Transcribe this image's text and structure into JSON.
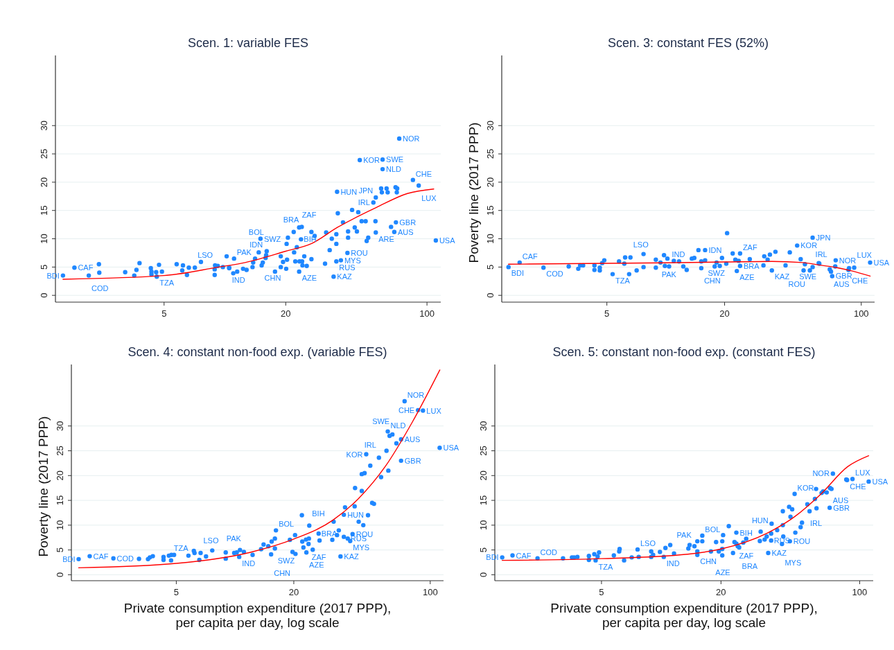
{
  "chart_data": [
    {
      "type": "scatter",
      "title": "Scen. 1: variable FES",
      "log": "x",
      "grid": "y",
      "tick_labels": true,
      "xlim": [
        1.45,
        117
      ],
      "xticks": [
        5,
        20,
        100
      ],
      "ylim": [
        -1.2,
        42.4
      ],
      "yticks": [
        0,
        5,
        10,
        15,
        20,
        25,
        30
      ],
      "series": [
        {
          "marker": "circle",
          "color": "#1f87ff",
          "x": [
            1.58,
            1.8,
            2.12,
            4.6,
            7.1,
            10.5,
            11.1,
            15.0,
            16.1,
            15.9,
            15.2,
            23.3,
            24.0,
            23.8,
            23.3,
            35.9,
            34.5,
            40.4,
            37.5,
            35.6,
            46.5,
            60.3,
            60.3,
            72.9,
            55.8,
            54.3,
            55.8,
            68.9,
            70.2,
            85.2,
            91.0,
            110.6,
            2.38,
            2.39,
            3.21,
            3.56,
            3.65,
            3.78,
            4.3,
            4.33,
            4.33,
            4.57,
            4.72,
            4.88,
            5.77,
            6.15,
            6.2,
            6.49,
            6.63,
            7.61,
            8.9,
            8.9,
            8.94,
            9.22,
            9.77,
            10.2,
            10.5,
            11.0,
            11.5,
            12.3,
            12.8,
            13.7,
            13.8,
            14.1,
            14.7,
            15.4,
            16.0,
            17.7,
            18.9,
            18.9,
            19.4,
            20.1,
            20.3,
            20.2,
            20.5,
            21.9,
            22.0,
            22.3,
            22.7,
            23.4,
            24.1,
            24.2,
            24.7,
            25.4,
            26.8,
            27.8,
            26.8,
            31.3,
            31.7,
            33.0,
            33.8,
            35.6,
            35.6,
            36.2,
            38.4,
            40.7,
            40.7,
            42.6,
            43.9,
            45.0,
            45.7,
            47.5,
            49.7,
            50.3,
            51.2,
            55.6,
            59.3,
            59.8,
            63.1,
            63.9,
            66.4,
            69.9,
            70.9,
            71.2
          ],
          "values": [
            3.5,
            4.9,
            3.5,
            3.3,
            4.9,
            4.9,
            6.5,
            10.0,
            7.8,
            6.6,
            5.3,
            12.0,
            12.1,
            9.9,
            4.2,
            18.3,
            3.3,
            7.5,
            6.2,
            6.0,
            23.9,
            24.0,
            22.3,
            27.7,
            17.3,
            16.4,
            11.1,
            11.2,
            12.9,
            20.4,
            19.4,
            9.7,
            5.5,
            4.0,
            4.1,
            3.5,
            4.5,
            5.7,
            4.8,
            4.2,
            3.7,
            4.1,
            5.4,
            4.2,
            5.5,
            4.4,
            5.3,
            3.6,
            4.9,
            5.9,
            4.6,
            3.6,
            5.3,
            5.2,
            5.0,
            6.9,
            4.8,
            3.9,
            4.2,
            4.7,
            4.5,
            5.0,
            5.8,
            6.5,
            7.6,
            5.8,
            7.1,
            4.2,
            5.0,
            6.9,
            5.9,
            4.7,
            6.3,
            9.1,
            10.2,
            11.2,
            7.6,
            6.0,
            8.5,
            6.0,
            6.0,
            5.3,
            6.9,
            5.2,
            6.4,
            10.5,
            11.2,
            5.6,
            11.1,
            8.0,
            10.0,
            9.1,
            10.8,
            14.5,
            12.9,
            11.3,
            10.2,
            15.1,
            12.0,
            11.3,
            14.7,
            13.1,
            13.1,
            9.6,
            10.2,
            13.1,
            18.9,
            18.2,
            18.9,
            18.2,
            12.1,
            19.1,
            18.2,
            18.9
          ]
        },
        {
          "type": "line",
          "color": "#ff0000",
          "x": [
            1.58,
            5,
            9.3,
            12.6,
            20,
            27,
            36,
            56,
            80,
            108
          ],
          "values": [
            2.85,
            3.5,
            5.0,
            5.8,
            7.8,
            9.2,
            12.0,
            15.5,
            18.0,
            18.8
          ]
        }
      ],
      "annotations": [
        {
          "text": "BDI",
          "x": 1.58,
          "y": 3.5
        },
        {
          "text": "CAF",
          "x": 1.8,
          "y": 4.9
        },
        {
          "text": "COD",
          "x": 2.12,
          "y": 3.5
        },
        {
          "text": "TZA",
          "x": 4.6,
          "y": 3.3
        },
        {
          "text": "LSO",
          "x": 7.1,
          "y": 4.9
        },
        {
          "text": "IND",
          "x": 10.5,
          "y": 4.9
        },
        {
          "text": "PAK",
          "x": 11.1,
          "y": 6.5
        },
        {
          "text": "SWZ",
          "x": 15.0,
          "y": 10.0
        },
        {
          "text": "BOL",
          "x": 16.1,
          "y": 7.8
        },
        {
          "text": "IDN",
          "x": 15.9,
          "y": 6.6
        },
        {
          "text": "CHN",
          "x": 15.2,
          "y": 5.3
        },
        {
          "text": "ZAF",
          "x": 23.3,
          "y": 12.0
        },
        {
          "text": "BRA",
          "x": 24.0,
          "y": 12.1
        },
        {
          "text": "BIH",
          "x": 23.8,
          "y": 9.9
        },
        {
          "text": "AZE",
          "x": 23.3,
          "y": 4.2
        },
        {
          "text": "HUN",
          "x": 35.9,
          "y": 18.3
        },
        {
          "text": "KAZ",
          "x": 34.5,
          "y": 3.3
        },
        {
          "text": "ROU",
          "x": 40.4,
          "y": 7.5
        },
        {
          "text": "MYS",
          "x": 37.5,
          "y": 6.2
        },
        {
          "text": "RUS",
          "x": 35.6,
          "y": 6.0
        },
        {
          "text": "KOR",
          "x": 46.5,
          "y": 23.9
        },
        {
          "text": "SWE",
          "x": 60.3,
          "y": 24.0
        },
        {
          "text": "NLD",
          "x": 60.3,
          "y": 22.3
        },
        {
          "text": "NOR",
          "x": 72.9,
          "y": 27.7
        },
        {
          "text": "JPN",
          "x": 55.8,
          "y": 17.3
        },
        {
          "text": "IRL",
          "x": 54.3,
          "y": 16.4
        },
        {
          "text": "ARE",
          "x": 55.8,
          "y": 11.1
        },
        {
          "text": "AUS",
          "x": 68.9,
          "y": 11.2
        },
        {
          "text": "GBR",
          "x": 70.2,
          "y": 12.9
        },
        {
          "text": "CHE",
          "x": 85.2,
          "y": 20.4
        },
        {
          "text": "LUX",
          "x": 91.0,
          "y": 19.4
        },
        {
          "text": "USA",
          "x": 110.6,
          "y": 9.7
        }
      ]
    },
    {
      "type": "scatter",
      "title": "Scen. 3: constant FES (52%)",
      "ylabel": "Poverty line (2017 PPP)",
      "log": "x",
      "grid": "y",
      "xlim": [
        1.45,
        117
      ],
      "xticks": [
        5,
        20,
        100
      ],
      "ylim": [
        -1.2,
        42.4
      ],
      "yticks": [
        0,
        5,
        10,
        15,
        20,
        25,
        30
      ],
      "series": [
        {
          "marker": "circle",
          "color": "#1f87ff",
          "x": [
            1.57,
            1.79,
            2.37,
            5.35,
            6.6,
            10.4,
            11.7,
            15.9,
            15.9,
            15.2,
            24.0,
            24.0,
            23.1,
            34.9,
            41.0,
            47.0,
            56.4,
            56.4,
            61,
            74,
            70,
            71,
            86.6,
            92,
            111,
            3.19,
            3.57,
            3.65,
            3.78,
            4.32,
            4.32,
            4.6,
            4.6,
            4.73,
            4.85,
            5.77,
            6.14,
            6.2,
            6.5,
            7.1,
            7.7,
            7.7,
            8.9,
            8.9,
            9.4,
            9.8,
            9.9,
            10.2,
            11.0,
            12.3,
            12.8,
            13.6,
            14.0,
            14.7,
            15.2,
            17.8,
            18.2,
            18.9,
            19.4,
            20.4,
            20.6,
            22.0,
            22.7,
            23.6,
            26.9,
            31.6,
            31.9,
            33.2,
            34.1,
            36.4,
            43.1,
            49.0,
            50.7,
            51.5,
            54.6,
            60.6,
            69.0,
            73.6,
            86.0
          ],
          "values": [
            5.0,
            5.8,
            4.9,
            3.75,
            6.7,
            5.1,
            6.0,
            8.0,
            6.2,
            4.8,
            7.4,
            5.2,
            4.3,
            4.4,
            5.3,
            8.8,
            10.2,
            5.0,
            5.6,
            6.2,
            4.2,
            3.4,
            4.8,
            4.9,
            5.8,
            5.1,
            4.7,
            5.3,
            5.3,
            5.3,
            4.5,
            4.9,
            4.4,
            5.7,
            6.2,
            6.0,
            5.6,
            6.7,
            3.75,
            4.4,
            7.3,
            5.0,
            6.3,
            4.9,
            5.8,
            7.1,
            5.2,
            6.5,
            6.1,
            5.1,
            4.5,
            6.5,
            6.6,
            8.0,
            6.0,
            5.1,
            5.8,
            5.2,
            6.6,
            5.6,
            11.0,
            7.4,
            6.3,
            6.1,
            6.4,
            5.3,
            6.9,
            6.3,
            7.2,
            7.7,
            7.6,
            6.4,
            4.4,
            5.5,
            4.4,
            5.7,
            4.6,
            5.1,
            4.5
          ]
        },
        {
          "type": "line",
          "color": "#ff0000",
          "x": [
            1.57,
            5,
            10,
            20,
            35,
            50,
            60,
            75,
            90,
            111
          ],
          "values": [
            5.5,
            5.65,
            5.75,
            5.9,
            6.0,
            5.8,
            5.4,
            4.9,
            4.3,
            3.4
          ]
        }
      ],
      "annotations": [
        {
          "text": "BDI",
          "x": 1.57,
          "y": 5.0
        },
        {
          "text": "CAF",
          "x": 1.79,
          "y": 5.8
        },
        {
          "text": "COD",
          "x": 2.37,
          "y": 4.9
        },
        {
          "text": "TZA",
          "x": 5.35,
          "y": 3.75
        },
        {
          "text": "LSO",
          "x": 6.6,
          "y": 6.7
        },
        {
          "text": "IND",
          "x": 10.4,
          "y": 5.1
        },
        {
          "text": "PAK",
          "x": 11.7,
          "y": 6.0
        },
        {
          "text": "IDN",
          "x": 15.9,
          "y": 8.0
        },
        {
          "text": "SWZ",
          "x": 15.9,
          "y": 6.2
        },
        {
          "text": "CHN",
          "x": 15.2,
          "y": 4.8
        },
        {
          "text": "ZAF",
          "x": 24.0,
          "y": 7.4
        },
        {
          "text": "BRA",
          "x": 24.0,
          "y": 5.2
        },
        {
          "text": "AZE",
          "x": 23.1,
          "y": 4.3
        },
        {
          "text": "KAZ",
          "x": 34.9,
          "y": 4.4
        },
        {
          "text": "ROU",
          "x": 41.0,
          "y": 5.3
        },
        {
          "text": "KOR",
          "x": 47.0,
          "y": 8.8
        },
        {
          "text": "JPN",
          "x": 56.4,
          "y": 10.2
        },
        {
          "text": "IRL",
          "x": 56.4,
          "y": 5.0
        },
        {
          "text": "SWE",
          "x": 61,
          "y": 5.6
        },
        {
          "text": "NOR",
          "x": 74,
          "y": 6.2
        },
        {
          "text": "AUS",
          "x": 70,
          "y": 4.2
        },
        {
          "text": "GBR",
          "x": 71,
          "y": 3.4
        },
        {
          "text": "CHE",
          "x": 86.6,
          "y": 4.8
        },
        {
          "text": "LUX",
          "x": 92,
          "y": 4.9
        },
        {
          "text": "USA",
          "x": 111,
          "y": 5.8
        }
      ]
    },
    {
      "type": "scatter",
      "title": "Scen. 4: constant non-food exp. (variable FES)",
      "ylabel": "Poverty line (2017 PPP)",
      "xlabel": "Private consumption expenditure (2017 PPP), per capita per day, log scale",
      "log": "x",
      "grid": "y",
      "xlim": [
        1.45,
        117
      ],
      "xticks": [
        5,
        20,
        100
      ],
      "ylim": [
        -1.2,
        42.4
      ],
      "yticks": [
        0,
        5,
        10,
        15,
        20,
        25,
        30
      ],
      "series": [
        {
          "marker": "circle",
          "color": "#1f87ff",
          "x": [
            1.58,
            1.8,
            2.38,
            4.7,
            6.66,
            10.5,
            11.1,
            16.2,
            16.0,
            15.3,
            24.0,
            23.9,
            26.8,
            23.2,
            34.7,
            36.1,
            40.0,
            37.8,
            38.9,
            47.0,
            54.6,
            60.6,
            64,
            70.9,
            70.9,
            73.9,
            86.6,
            91.8,
            111.8,
            3.22,
            3.58,
            3.66,
            3.79,
            4.3,
            4.3,
            4.58,
            4.72,
            4.87,
            5.77,
            6.15,
            6.2,
            6.56,
            7.1,
            7.64,
            8.96,
            8.96,
            9.9,
            10.2,
            10.6,
            12.3,
            13.6,
            14.0,
            14.8,
            15.4,
            16.0,
            19.1,
            19.7,
            20.3,
            20.4,
            22.0,
            22.1,
            22.4,
            23.1,
            23.8,
            25.0,
            27.1,
            31.5,
            32.0,
            33.3,
            34.0,
            36.1,
            36.6,
            41.0,
            41.2,
            43.0,
            44.6,
            45.4,
            44.6,
            46.1,
            48.0,
            49.3,
            50.4,
            51.5,
            56.0,
            59.7,
            61.0,
            61.9,
            67.1
          ],
          "values": [
            3.15,
            3.75,
            3.3,
            2.9,
            4.4,
            3.6,
            4.6,
            8.95,
            5.3,
            4.1,
            9.9,
            7.3,
            8.3,
            4.5,
            3.7,
            12.1,
            8.2,
            7.3,
            6.8,
            24.3,
            23.6,
            28.9,
            28.3,
            27.3,
            23.0,
            35.0,
            33.2,
            33.1,
            25.6,
            3.2,
            3.15,
            3.5,
            3.75,
            3.6,
            3.0,
            3.85,
            4.0,
            4.0,
            3.85,
            4.8,
            4.4,
            3.0,
            3.7,
            4.9,
            4.5,
            3.25,
            4.4,
            4.5,
            5.0,
            4.0,
            5.15,
            6.1,
            5.75,
            6.7,
            7.3,
            7.05,
            4.6,
            8.0,
            4.2,
            12.0,
            6.7,
            5.5,
            7.1,
            6.2,
            5.05,
            6.9,
            7.05,
            10.7,
            8.0,
            8.95,
            7.65,
            13.6,
            13.8,
            17.5,
            10.7,
            16.9,
            10.0,
            20.3,
            20.5,
            12.0,
            22.0,
            14.5,
            14.3,
            19.7,
            25.0,
            21.0,
            28.0,
            26.5
          ]
        },
        {
          "type": "line",
          "color": "#ff0000",
          "x": [
            1.58,
            5,
            11.9,
            20,
            31.7,
            43,
            59,
            81,
            112
          ],
          "values": [
            1.4,
            2.3,
            4.5,
            7.2,
            11.0,
            15.4,
            21.9,
            30.8,
            41.3
          ]
        }
      ],
      "annotations": [
        {
          "text": "BDI",
          "x": 1.58,
          "y": 3.15
        },
        {
          "text": "CAF",
          "x": 1.8,
          "y": 3.75
        },
        {
          "text": "COD",
          "x": 2.38,
          "y": 3.3
        },
        {
          "text": "TZA",
          "x": 4.7,
          "y": 2.9
        },
        {
          "text": "LSO",
          "x": 6.66,
          "y": 4.4
        },
        {
          "text": "IND",
          "x": 10.5,
          "y": 3.6
        },
        {
          "text": "PAK",
          "x": 11.1,
          "y": 4.6
        },
        {
          "text": "BOL",
          "x": 16.2,
          "y": 8.95
        },
        {
          "text": "SWZ",
          "x": 16.0,
          "y": 5.3
        },
        {
          "text": "CHN",
          "x": 15.3,
          "y": 4.1
        },
        {
          "text": "BIH",
          "x": 24.0,
          "y": 9.9
        },
        {
          "text": "ZAF",
          "x": 23.9,
          "y": 7.3
        },
        {
          "text": "BRA",
          "x": 26.8,
          "y": 8.3
        },
        {
          "text": "AZE",
          "x": 23.2,
          "y": 4.5
        },
        {
          "text": "KAZ",
          "x": 34.7,
          "y": 3.7
        },
        {
          "text": "HUN",
          "x": 36.1,
          "y": 12.1
        },
        {
          "text": "ROU",
          "x": 40.0,
          "y": 8.2
        },
        {
          "text": "RUS",
          "x": 37.8,
          "y": 7.3
        },
        {
          "text": "MYS",
          "x": 38.9,
          "y": 6.8
        },
        {
          "text": "KOR",
          "x": 47.0,
          "y": 24.3
        },
        {
          "text": "IRL",
          "x": 54.6,
          "y": 23.6
        },
        {
          "text": "NLD",
          "x": 60.6,
          "y": 28.9
        },
        {
          "text": "SWE",
          "x": 64,
          "y": 28.3
        },
        {
          "text": "AUS",
          "x": 70.9,
          "y": 27.3
        },
        {
          "text": "GBR",
          "x": 70.9,
          "y": 23.0
        },
        {
          "text": "NOR",
          "x": 73.9,
          "y": 35.0
        },
        {
          "text": "CHE",
          "x": 86.6,
          "y": 33.2
        },
        {
          "text": "LUX",
          "x": 91.8,
          "y": 33.1
        },
        {
          "text": "USA",
          "x": 111.8,
          "y": 25.6
        }
      ]
    },
    {
      "type": "scatter",
      "title": "Scen. 5: constant non-food exp. (constant FES)",
      "xlabel": "Private consumption expenditure (2017 PPP), per capita per day, log scale",
      "log": "x",
      "grid": "y",
      "xlim": [
        1.45,
        117
      ],
      "xticks": [
        5,
        20,
        100
      ],
      "ylim": [
        -1.2,
        42.4
      ],
      "yticks": [
        0,
        5,
        10,
        15,
        20,
        25,
        30
      ],
      "series": [
        {
          "marker": "circle",
          "color": "#1f87ff",
          "x": [
            1.58,
            1.78,
            2.38,
            4.67,
            7.6,
            10.3,
            11.6,
            16.1,
            15.2,
            23.9,
            23.9,
            24.7,
            23.0,
            34.6,
            35.8,
            35.8,
            44.5,
            40.6,
            47,
            54.5,
            70.6,
            70.9,
            73.3,
            86.4,
            92,
            111,
            3.2,
            3.55,
            3.64,
            3.78,
            4.32,
            4.32,
            4.6,
            4.78,
            4.86,
            5.77,
            6.14,
            6.17,
            6.5,
            7.1,
            7.7,
            8.9,
            8.9,
            9.1,
            9.85,
            10.5,
            11.1,
            13.7,
            13.9,
            14.7,
            15.2,
            16.1,
            15.2,
            17.8,
            18.9,
            19.5,
            20.3,
            20.3,
            20.5,
            20.3,
            21.9,
            23.4,
            24.3,
            25.9,
            26.8,
            31.4,
            31.7,
            33.2,
            34.0,
            36.0,
            38.4,
            41.0,
            41.0,
            41.2,
            44.1,
            44.8,
            45.7,
            47.4,
            50.4,
            51.2,
            55.9,
            59.5,
            60.3,
            60.6,
            64.3,
            65.4,
            68.2,
            72.1,
            85.6
          ],
          "values": [
            3.5,
            3.9,
            3.3,
            2.9,
            5.1,
            3.6,
            4.3,
            7.9,
            4.0,
            8.5,
            6.3,
            5.5,
            4.4,
            4.4,
            8.3,
            6.9,
            6.75,
            6.2,
            16.3,
            14.2,
            13.5,
            17.5,
            20.4,
            19.1,
            19.3,
            18.8,
            3.3,
            3.5,
            3.5,
            3.6,
            3.8,
            3.0,
            4.15,
            3.7,
            4.5,
            3.9,
            4.7,
            5.2,
            2.9,
            3.5,
            3.6,
            4.7,
            3.6,
            4.0,
            4.6,
            5.4,
            6.0,
            5.3,
            6.0,
            5.75,
            6.75,
            6.75,
            4.7,
            4.7,
            6.6,
            4.7,
            5.2,
            6.75,
            8.0,
            3.9,
            9.8,
            6.6,
            5.75,
            6.5,
            7.25,
            6.8,
            8.7,
            7.1,
            7.7,
            10.3,
            9.0,
            12.8,
            10.0,
            7.7,
            13.7,
            11.7,
            13.2,
            8.5,
            9.6,
            10.5,
            12.8,
            15.3,
            17.3,
            13.4,
            16.5,
            16.8,
            16.6,
            17.3,
            19.2
          ]
        },
        {
          "type": "line",
          "color": "#ff0000",
          "x": [
            1.58,
            5,
            13.6,
            20,
            34.2,
            47,
            63.5,
            87,
            111
          ],
          "values": [
            2.9,
            3.25,
            4.15,
            5.2,
            8.4,
            11.7,
            16.2,
            21.8,
            24.0
          ]
        }
      ],
      "annotations": [
        {
          "text": "BDI",
          "x": 1.58,
          "y": 3.5
        },
        {
          "text": "CAF",
          "x": 1.78,
          "y": 3.9
        },
        {
          "text": "COD",
          "x": 2.38,
          "y": 3.3
        },
        {
          "text": "TZA",
          "x": 4.67,
          "y": 2.9
        },
        {
          "text": "LSO",
          "x": 7.6,
          "y": 5.1
        },
        {
          "text": "IND",
          "x": 10.3,
          "y": 3.6
        },
        {
          "text": "PAK",
          "x": 11.6,
          "y": 4.3
        },
        {
          "text": "BOL",
          "x": 16.1,
          "y": 7.9
        },
        {
          "text": "CHN",
          "x": 15.2,
          "y": 4.0
        },
        {
          "text": "BIH",
          "x": 23.9,
          "y": 8.5
        },
        {
          "text": "ZAF",
          "x": 23.9,
          "y": 6.3
        },
        {
          "text": "BRA",
          "x": 24.7,
          "y": 5.5
        },
        {
          "text": "AZE",
          "x": 23.0,
          "y": 4.4
        },
        {
          "text": "KAZ",
          "x": 34.6,
          "y": 4.4
        },
        {
          "text": "HUN",
          "x": 35.8,
          "y": 8.3
        },
        {
          "text": "RUS",
          "x": 35.8,
          "y": 6.9
        },
        {
          "text": "ROU",
          "x": 44.5,
          "y": 6.75
        },
        {
          "text": "MYS",
          "x": 40.6,
          "y": 6.2
        },
        {
          "text": "KOR",
          "x": 47,
          "y": 16.3
        },
        {
          "text": "IRL",
          "x": 54.5,
          "y": 14.2
        },
        {
          "text": "GBR",
          "x": 70.6,
          "y": 13.5
        },
        {
          "text": "AUS",
          "x": 70.9,
          "y": 17.5
        },
        {
          "text": "NOR",
          "x": 73.3,
          "y": 20.4
        },
        {
          "text": "CHE",
          "x": 86.4,
          "y": 19.1
        },
        {
          "text": "LUX",
          "x": 92,
          "y": 19.3
        },
        {
          "text": "USA",
          "x": 111,
          "y": 18.8
        }
      ]
    }
  ]
}
